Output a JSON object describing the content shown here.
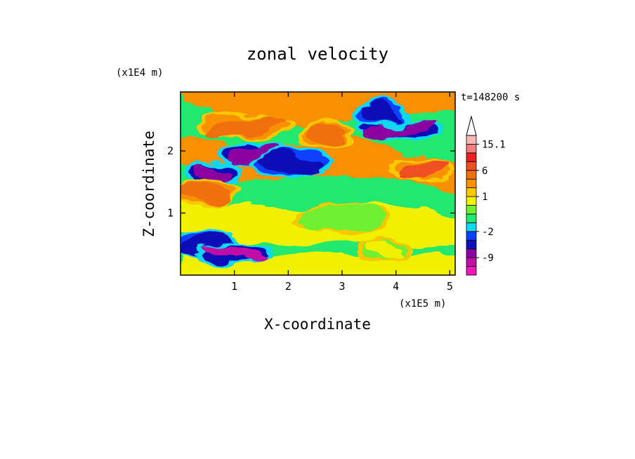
{
  "chart_data": {
    "type": "heatmap",
    "title": "zonal velocity",
    "xlabel": "X-coordinate",
    "ylabel": "Z-coordinate",
    "x_unit": "(x1E5 m)",
    "y_unit": "(x1E4 m)",
    "time_label": "t=148200 s",
    "xlim": [
      0,
      5.1
    ],
    "ylim": [
      0,
      2.95
    ],
    "x_ticks": [
      1,
      2,
      3,
      4,
      5
    ],
    "x_tick_labels": [
      "1",
      "2",
      "3",
      "4",
      "5"
    ],
    "y_ticks": [
      1,
      2
    ],
    "y_tick_labels": [
      "1",
      "2"
    ],
    "colorbar": {
      "levels": [
        {
          "lower": -15,
          "upper": -12,
          "color": "#f018b8"
        },
        {
          "lower": -12,
          "upper": -9,
          "color": "#c010a8"
        },
        {
          "lower": -9,
          "upper": -6,
          "color": "#8a00a0"
        },
        {
          "lower": -6,
          "upper": -4,
          "color": "#1010b8"
        },
        {
          "lower": -4,
          "upper": -2,
          "color": "#0a40ff"
        },
        {
          "lower": -2,
          "upper": -1,
          "color": "#10d8f0"
        },
        {
          "lower": -1,
          "upper": 0,
          "color": "#20e870"
        },
        {
          "lower": 0,
          "upper": 0.5,
          "color": "#70f030"
        },
        {
          "lower": 0.5,
          "upper": 1,
          "color": "#f0f000"
        },
        {
          "lower": 1,
          "upper": 2,
          "color": "#f8c800"
        },
        {
          "lower": 2,
          "upper": 4,
          "color": "#f89000"
        },
        {
          "lower": 4,
          "upper": 6,
          "color": "#f07010"
        },
        {
          "lower": 6,
          "upper": 9,
          "color": "#f05020"
        },
        {
          "lower": 9,
          "upper": 12,
          "color": "#f02020"
        },
        {
          "lower": 12,
          "upper": 15.1,
          "color": "#f08080"
        },
        {
          "lower": 15.1,
          "upper": 18,
          "color": "#f8b8b8"
        }
      ],
      "labels": [
        "15.1",
        "6",
        "1",
        "-2",
        "-9"
      ],
      "label_values": [
        15.1,
        6,
        1,
        -2,
        -9
      ],
      "over_arrow_color": "#ffffff"
    },
    "field_features": [
      {
        "description_x": 0.6,
        "z": 1.65,
        "value": -8
      },
      {
        "description_x": 1.3,
        "z": 1.95,
        "value": -7
      },
      {
        "description_x": 2.0,
        "z": 1.8,
        "value": -6
      },
      {
        "description_x": 4.1,
        "z": 2.35,
        "value": -8
      },
      {
        "description_x": 3.7,
        "z": 2.6,
        "value": -5
      },
      {
        "description_x": 0.5,
        "z": 0.5,
        "value": -6
      },
      {
        "description_x": 1.0,
        "z": 0.35,
        "value": -10
      },
      {
        "description_x": 1.2,
        "z": 2.4,
        "value": 4
      },
      {
        "description_x": 2.7,
        "z": 2.25,
        "value": 4
      },
      {
        "description_x": 4.5,
        "z": 1.7,
        "value": 6
      },
      {
        "description_x": 0.4,
        "z": 1.35,
        "value": 4
      },
      {
        "description_x": 3.0,
        "z": 0.9,
        "value": 0
      },
      {
        "description_x": 3.8,
        "z": 0.4,
        "value": 0.8
      }
    ]
  }
}
